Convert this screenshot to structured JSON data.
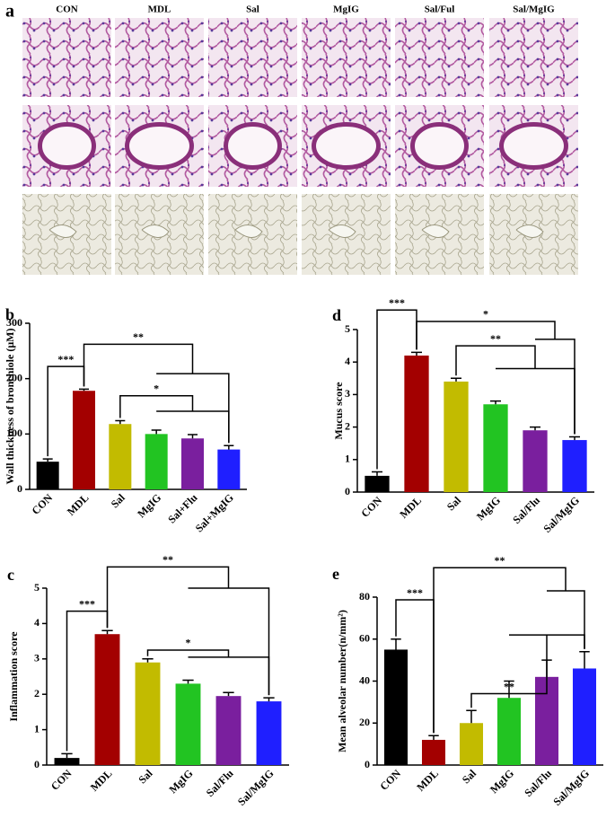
{
  "panel_a": {
    "letter": "a",
    "columns": [
      "CON",
      "MDL",
      "Sal",
      "MgIG",
      "Sal/Ful",
      "Sal/MgIG"
    ]
  },
  "chart_data": [
    {
      "type": "bar",
      "letter": "b",
      "ylabel": "Wall thickness of bronchiole (μM)",
      "categories": [
        "CON",
        "MDL",
        "Sal",
        "MgIG",
        "Sal+Flu",
        "Sal+MgIG"
      ],
      "values": [
        50,
        178,
        118,
        100,
        92,
        72
      ],
      "errors": [
        5,
        3,
        6,
        7,
        7,
        7
      ],
      "colors": [
        "#000000",
        "#a30000",
        "#c2bb00",
        "#22c422",
        "#7a1f9e",
        "#1f1fff"
      ],
      "ylim": [
        0,
        300
      ],
      "yticks": [
        0,
        100,
        200,
        300
      ],
      "annotations": [
        "***",
        "**",
        "*"
      ]
    },
    {
      "type": "bar",
      "letter": "d",
      "ylabel": "Mucus score",
      "categories": [
        "CON",
        "MDL",
        "Sal",
        "MgIG",
        "Sal/Flu",
        "Sal/MgIG"
      ],
      "values": [
        0.5,
        4.2,
        3.4,
        2.7,
        1.9,
        1.6
      ],
      "errors": [
        0.12,
        0.1,
        0.1,
        0.1,
        0.1,
        0.1
      ],
      "colors": [
        "#000000",
        "#a30000",
        "#c2bb00",
        "#22c422",
        "#7a1f9e",
        "#1f1fff"
      ],
      "ylim": [
        0,
        5
      ],
      "yticks": [
        0,
        1,
        2,
        3,
        4,
        5
      ],
      "annotations": [
        "***",
        "*",
        "**"
      ]
    },
    {
      "type": "bar",
      "letter": "c",
      "ylabel": "Inflammation score",
      "categories": [
        "CON",
        "MDL",
        "Sal",
        "MgIG",
        "Sal/Flu",
        "Sal/MgIG"
      ],
      "values": [
        0.2,
        3.7,
        2.9,
        2.3,
        1.95,
        1.8
      ],
      "errors": [
        0.12,
        0.1,
        0.1,
        0.1,
        0.1,
        0.1
      ],
      "colors": [
        "#000000",
        "#a30000",
        "#c2bb00",
        "#22c422",
        "#7a1f9e",
        "#1f1fff"
      ],
      "ylim": [
        0,
        5
      ],
      "yticks": [
        0,
        1,
        2,
        3,
        4,
        5
      ],
      "annotations": [
        "***",
        "**",
        "*"
      ]
    },
    {
      "type": "bar",
      "letter": "e",
      "ylabel": "Mean alveolar number(n/mm²)",
      "categories": [
        "CON",
        "MDL",
        "Sal",
        "MgIG",
        "Sal/Flu",
        "Sal/MgIG"
      ],
      "values": [
        55,
        12,
        20,
        32,
        42,
        46
      ],
      "errors": [
        5,
        2,
        6,
        8,
        8,
        8
      ],
      "colors": [
        "#000000",
        "#a30000",
        "#c2bb00",
        "#22c422",
        "#7a1f9e",
        "#1f1fff"
      ],
      "ylim": [
        0,
        80
      ],
      "yticks": [
        0,
        20,
        40,
        60,
        80
      ],
      "annotations": [
        "***",
        "**",
        "**"
      ]
    }
  ]
}
